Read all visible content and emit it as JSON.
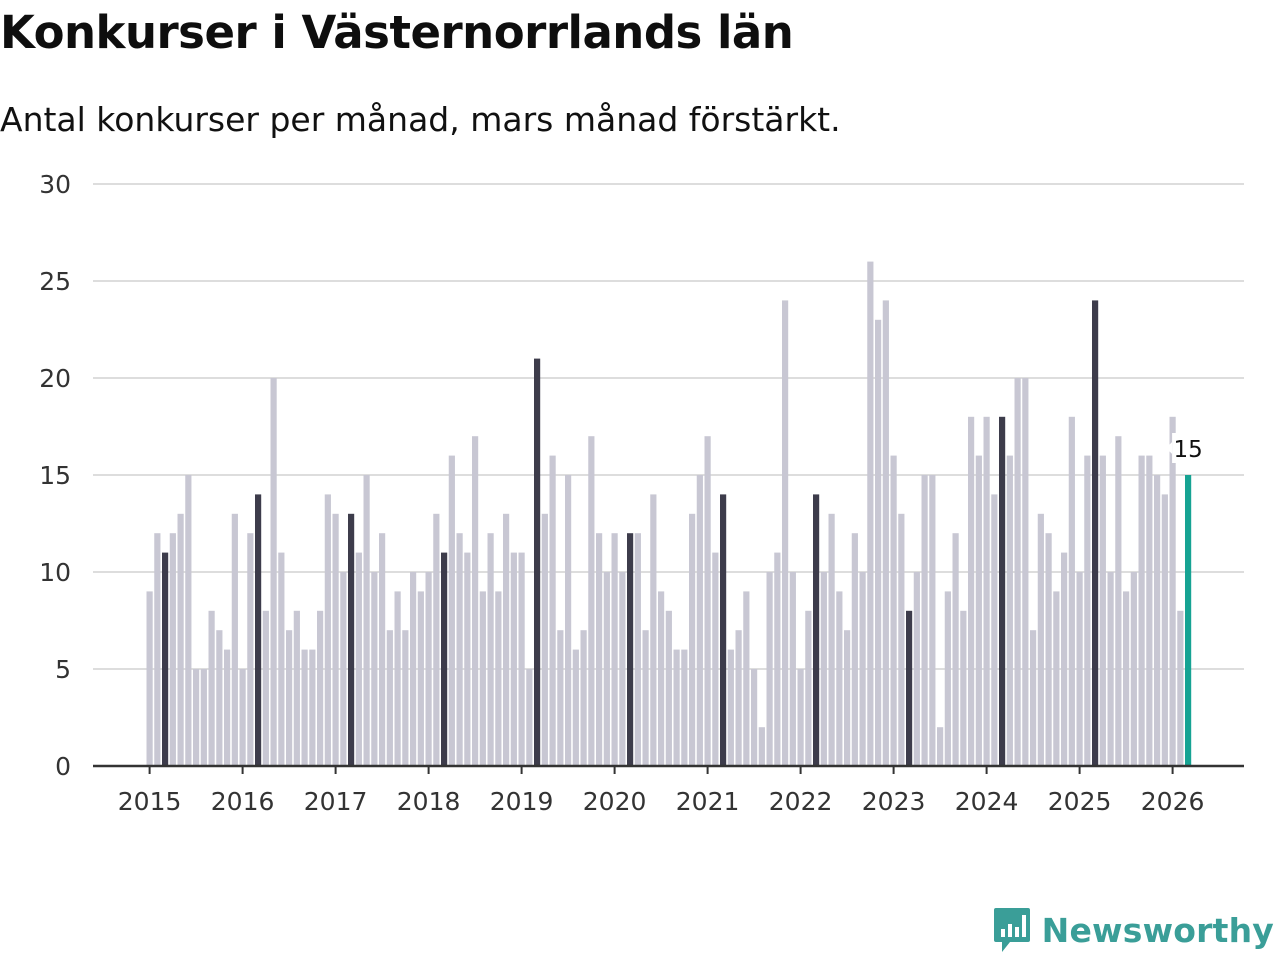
{
  "title": "Konkurser i Västernorrlands län",
  "subtitle": "Antal konkurser per månad, mars månad förstärkt.",
  "brand": {
    "name": "Newsworthy",
    "icon": "newsworthy-logo-icon"
  },
  "colors": {
    "bar": "#c8c7d3",
    "highlight": "#3d3c4b",
    "latest": "#16a393",
    "grid": "#dddddd",
    "axis": "#333333"
  },
  "chart_data": {
    "type": "bar",
    "title": "Konkurser i Västernorrlands län",
    "xlabel": "",
    "ylabel": "",
    "ylim": [
      0,
      30
    ],
    "yticks": [
      0,
      5,
      10,
      15,
      20,
      25,
      30
    ],
    "start": {
      "year": 2015,
      "month": 1
    },
    "highlight_month": 3,
    "xtick_labels": [
      "2015",
      "2016",
      "2017",
      "2018",
      "2019",
      "2020",
      "2021",
      "2022",
      "2023",
      "2024",
      "2025",
      "2026"
    ],
    "latest_label": "15",
    "values": [
      9,
      12,
      11,
      12,
      13,
      15,
      5,
      5,
      8,
      7,
      6,
      13,
      5,
      12,
      14,
      8,
      20,
      11,
      7,
      8,
      6,
      6,
      8,
      14,
      13,
      10,
      13,
      11,
      15,
      10,
      12,
      7,
      9,
      7,
      10,
      9,
      10,
      13,
      11,
      16,
      12,
      11,
      17,
      9,
      12,
      9,
      13,
      11,
      11,
      5,
      21,
      13,
      16,
      7,
      15,
      6,
      7,
      17,
      12,
      10,
      12,
      10,
      12,
      12,
      7,
      14,
      9,
      8,
      6,
      6,
      13,
      15,
      17,
      11,
      14,
      6,
      7,
      9,
      5,
      2,
      10,
      11,
      24,
      10,
      5,
      8,
      14,
      10,
      13,
      9,
      7,
      12,
      10,
      26,
      23,
      24,
      16,
      13,
      8,
      10,
      15,
      15,
      2,
      9,
      12,
      8,
      18,
      16,
      18,
      14,
      18,
      16,
      20,
      20,
      7,
      13,
      12,
      9,
      11,
      18,
      10,
      16,
      24,
      16,
      10,
      17,
      9,
      10,
      16,
      16,
      15,
      14,
      18,
      8,
      15
    ]
  }
}
